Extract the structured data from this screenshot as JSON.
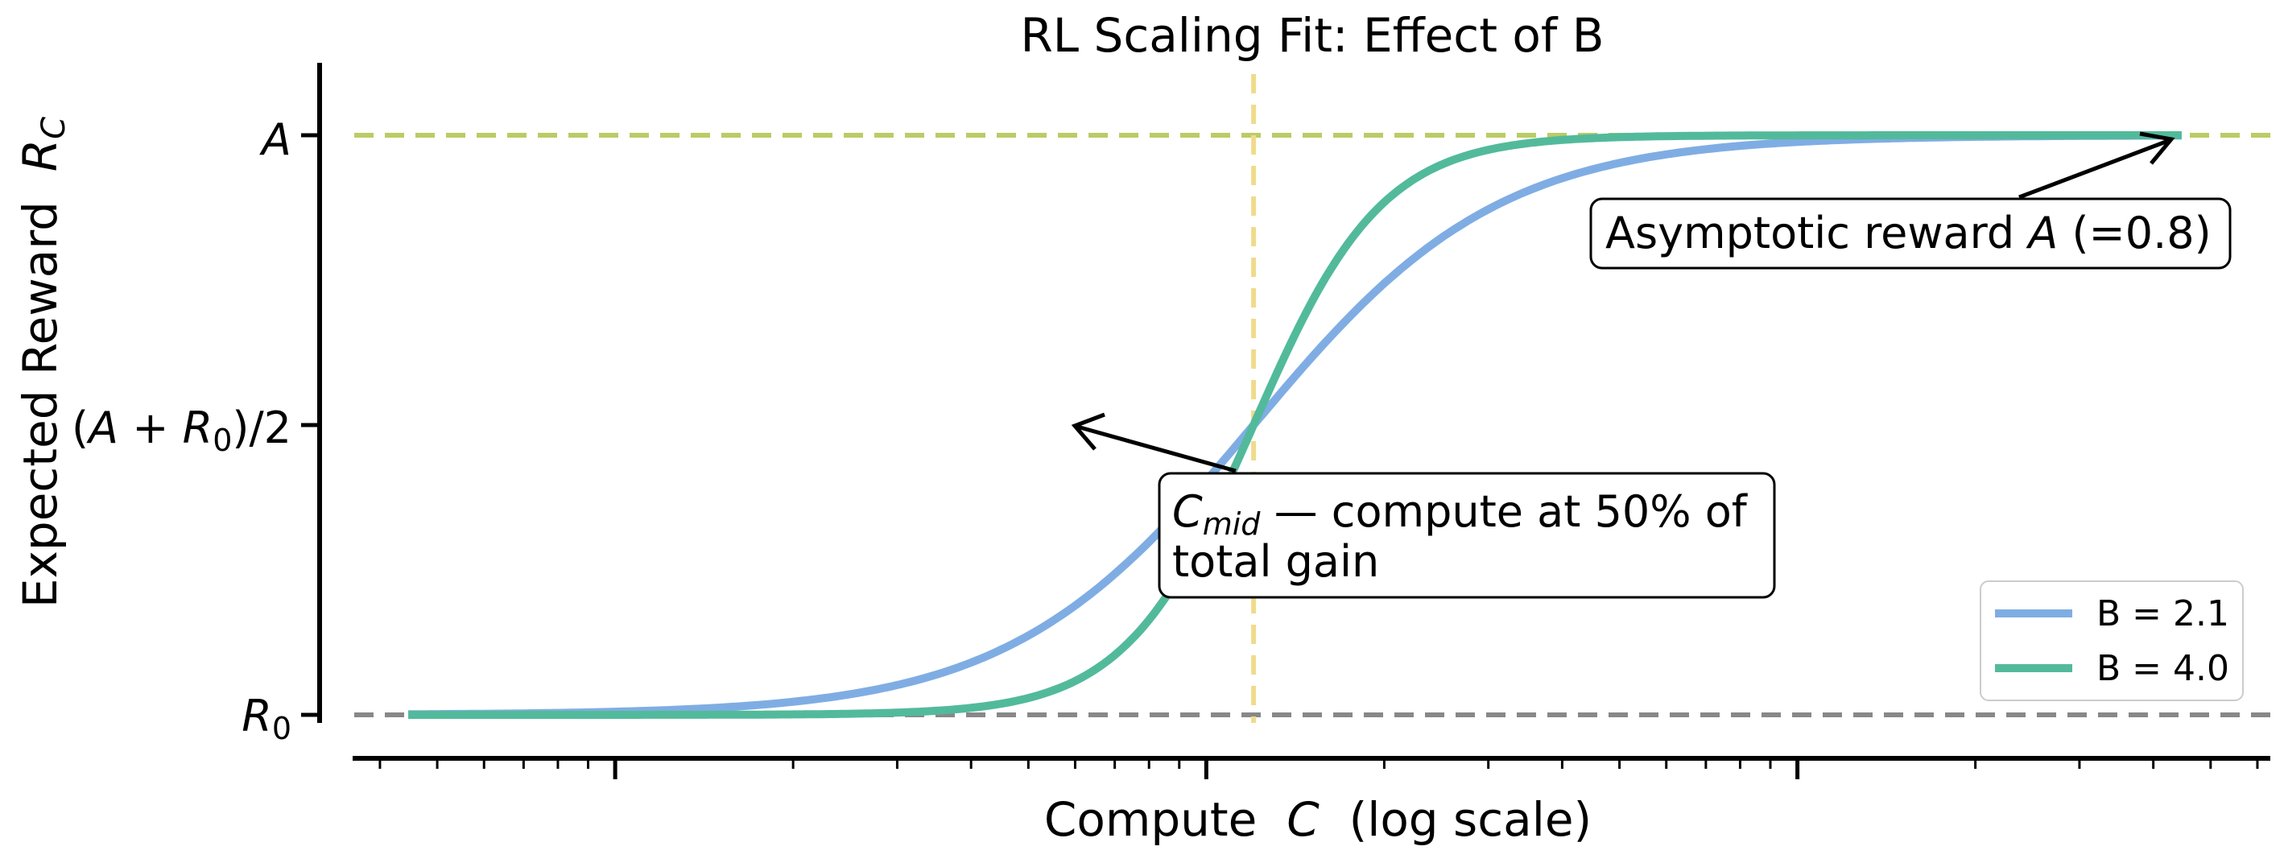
{
  "chart_data": {
    "type": "line",
    "title": "RL Scaling Fit: Effect of B",
    "xlabel": {
      "prefix": "Compute  ",
      "var": "C",
      "suffix": "  (log scale)"
    },
    "ylabel": {
      "prefix": "Expected Reward  ",
      "var": "R",
      "sub": "C"
    },
    "x_scale": "log",
    "x_ticks_labeled": false,
    "y_ticks": [
      {
        "label": "R0",
        "main": "R",
        "sub": "0",
        "value": 0.0
      },
      {
        "label": "(A+R0)/2",
        "pre": "(",
        "a": "A",
        "plus": " + ",
        "r": "R",
        "sub": "0",
        "post": ")/2",
        "value": 0.4
      },
      {
        "label": "A",
        "main": "A",
        "value": 0.8
      }
    ],
    "params": {
      "A": 0.8,
      "R0": 0.0,
      "C_mid_log10": 2.08
    },
    "x_log_range": [
      0.5,
      3.8
    ],
    "curve_log_range": [
      0.65,
      3.65
    ],
    "ylim": [
      -0.06,
      0.9
    ],
    "series": [
      {
        "name": "B = 2.1",
        "B": 2.1,
        "color": "#7FADE3"
      },
      {
        "name": "B = 4.0",
        "B": 4.0,
        "color": "#52BA9B"
      }
    ],
    "reference_lines": [
      {
        "type": "horizontal",
        "at": "A",
        "color": "#BBCB66"
      },
      {
        "type": "horizontal",
        "at": "R0",
        "color": "#888888"
      },
      {
        "type": "vertical",
        "at": "C_mid",
        "color": "#F0DB8C"
      }
    ],
    "annotations": [
      {
        "id": "asymptote",
        "text": {
          "pre": "Asymptotic reward ",
          "var": "A",
          "post": " (=0.8)"
        },
        "points_to": "end of curves at A"
      },
      {
        "id": "cmid",
        "line1": {
          "var": "C",
          "sub": "mid",
          "post": " — compute at 50% of"
        },
        "line2": "total gain",
        "points_to": "C_mid crossing"
      }
    ],
    "legend": {
      "placement": "lower-right"
    }
  }
}
